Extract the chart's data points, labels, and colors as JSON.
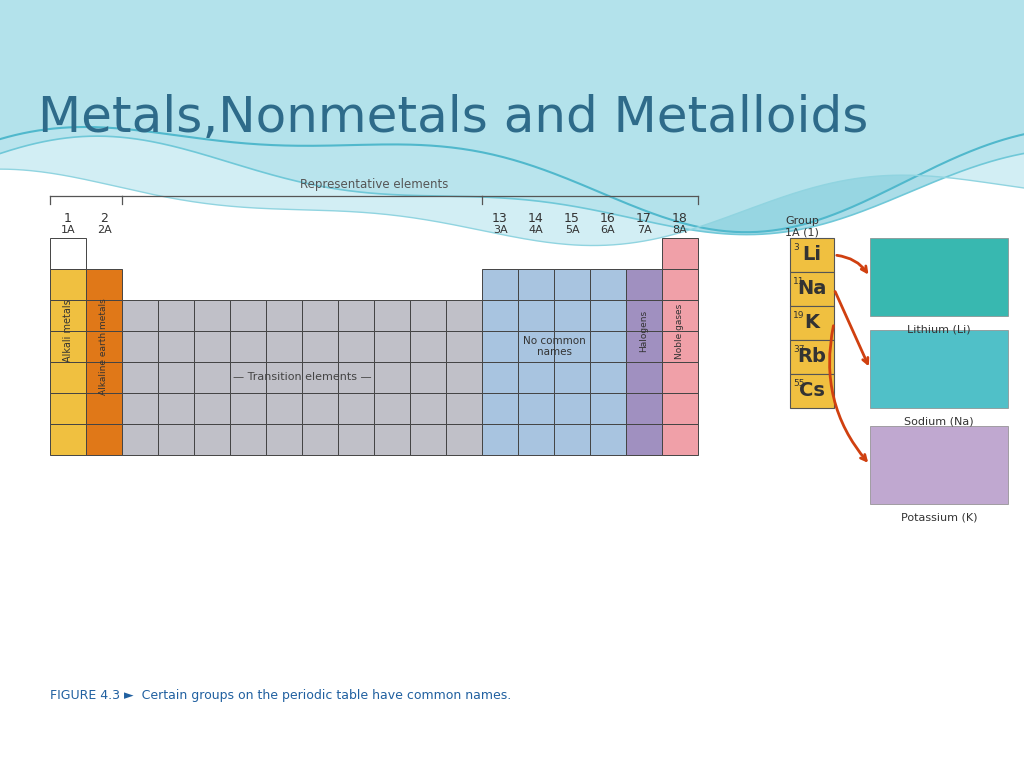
{
  "title": "Metals,Nonmetals and Metalloids",
  "title_color": "#2E6B8A",
  "title_fontsize": 36,
  "bg_color": "#FFFFFF",
  "figure_caption": "FIGURE 4.3 ►  Certain groups on the periodic table have common names.",
  "colors": {
    "alkali": "#F0C040",
    "alkaline": "#E07818",
    "transition": "#C0C0C8",
    "no_common": "#A8C4E0",
    "halogens": "#A090C0",
    "noble": "#F0A0A8",
    "white": "#FFFFFF",
    "outline": "#444444",
    "element_yellow": "#F0C040",
    "empty": "#FFFFFF"
  },
  "elements": [
    {
      "symbol": "Li",
      "number": "3"
    },
    {
      "symbol": "Na",
      "number": "11"
    },
    {
      "symbol": "K",
      "number": "19"
    },
    {
      "symbol": "Rb",
      "number": "37"
    },
    {
      "symbol": "Cs",
      "number": "55"
    }
  ],
  "photo_colors": [
    "#38B8B0",
    "#50C0C8",
    "#C0A8D0"
  ],
  "photo_labels": [
    "Lithium (Li)",
    "Sodium (Na)",
    "Potassium (K)"
  ],
  "group_label": "Group\n1A (1)"
}
